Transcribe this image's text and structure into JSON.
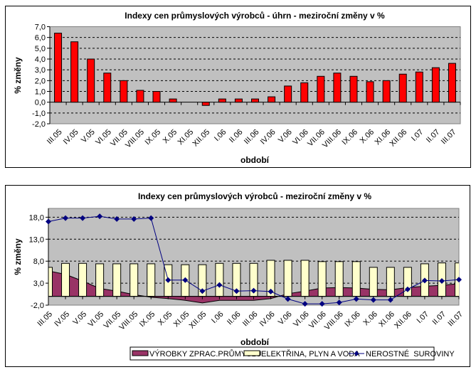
{
  "chart_data": [
    {
      "type": "bar",
      "title": "Indexy cen průmyslových výrobců - úhrn - meziroční změny v %",
      "xlabel": "období",
      "ylabel": "% změny",
      "ylim": [
        -2.0,
        7.0
      ],
      "yticks": [
        "7,0",
        "6,0",
        "5,0",
        "4,0",
        "3,0",
        "2,0",
        "1,0",
        "0,0",
        "-1,0",
        "-2,0"
      ],
      "ytick_values": [
        7,
        6,
        5,
        4,
        3,
        2,
        1,
        0,
        -1,
        -2
      ],
      "grid": true,
      "legend": "none",
      "categories": [
        "III.05",
        "IV.05",
        "V.05",
        "VI.05",
        "VII.05",
        "VIII.05",
        "IX.05",
        "X.05",
        "XI.05",
        "XII.05",
        "I.06",
        "II.06",
        "III.06",
        "IV.06",
        "V.06",
        "VI.06",
        "VII.06",
        "VIII.06",
        "IX.06",
        "X.06",
        "XI.06",
        "XII.06",
        "I.07",
        "II.07",
        "III.07"
      ],
      "series": [
        {
          "name": "úhrn",
          "color": "#ff0000",
          "values": [
            6.4,
            5.6,
            4.0,
            2.7,
            2.0,
            1.1,
            1.0,
            0.3,
            0.0,
            -0.3,
            0.3,
            0.3,
            0.3,
            0.5,
            1.5,
            1.8,
            2.4,
            2.7,
            2.4,
            1.9,
            2.0,
            2.6,
            2.8,
            3.2,
            3.6
          ]
        }
      ],
      "plot_background": "#c0c0c0"
    },
    {
      "type": "bar",
      "title": "Indexy cen průmyslových výrobců - meziroční změny v %",
      "xlabel": "období",
      "ylabel": "% změny",
      "ylim": [
        -2.0,
        20.0
      ],
      "yticks": [
        "18,0",
        "13,0",
        "8,0",
        "3,0",
        "-2,0"
      ],
      "ytick_values": [
        18,
        13,
        8,
        3,
        -2
      ],
      "grid": true,
      "legend": "bottom",
      "categories": [
        "III.05",
        "IV.05",
        "V.05",
        "VI.05",
        "VII.05",
        "VIII.05",
        "IX.05",
        "X.05",
        "XI.05",
        "XII.05",
        "I.06",
        "II.06",
        "III.06",
        "IV.06",
        "V.06",
        "VI.06",
        "VII.06",
        "VIII.06",
        "IX.06",
        "X.06",
        "XI.06",
        "XII.06",
        "I.07",
        "II.07",
        "III.07"
      ],
      "series": [
        {
          "name": "VÝROBKY ZPRAC.PRŮMYSLU",
          "kind": "area",
          "color": "#993366",
          "values": [
            5.8,
            5.0,
            3.5,
            1.8,
            1.2,
            0.4,
            -0.2,
            -0.5,
            -0.9,
            -1.5,
            -0.9,
            -0.9,
            -0.9,
            -0.5,
            0.6,
            1.2,
            1.9,
            2.0,
            1.9,
            1.6,
            1.5,
            2.0,
            2.3,
            2.5,
            2.9
          ]
        },
        {
          "name": "ELEKTŘINA, PLYN A VODA",
          "kind": "bar",
          "color": "#ffffcc",
          "values": [
            6.6,
            7.5,
            7.5,
            7.4,
            7.4,
            7.4,
            7.4,
            7.2,
            7.2,
            7.2,
            7.5,
            7.5,
            7.5,
            8.2,
            8.2,
            8.2,
            7.9,
            7.9,
            7.9,
            6.6,
            6.6,
            6.6,
            7.4,
            7.6,
            7.6
          ]
        },
        {
          "name": "NEROSTNÉ  SUROVINY",
          "kind": "line",
          "color": "#000080",
          "values": [
            17.0,
            17.8,
            17.8,
            18.2,
            17.6,
            17.6,
            17.8,
            3.7,
            3.7,
            1.2,
            2.6,
            1.2,
            1.3,
            1.1,
            -0.6,
            -1.7,
            -1.7,
            -1.4,
            -0.6,
            -0.8,
            -0.8,
            1.6,
            3.6,
            3.5,
            3.8
          ]
        }
      ],
      "plot_background": "#c0c0c0"
    }
  ]
}
